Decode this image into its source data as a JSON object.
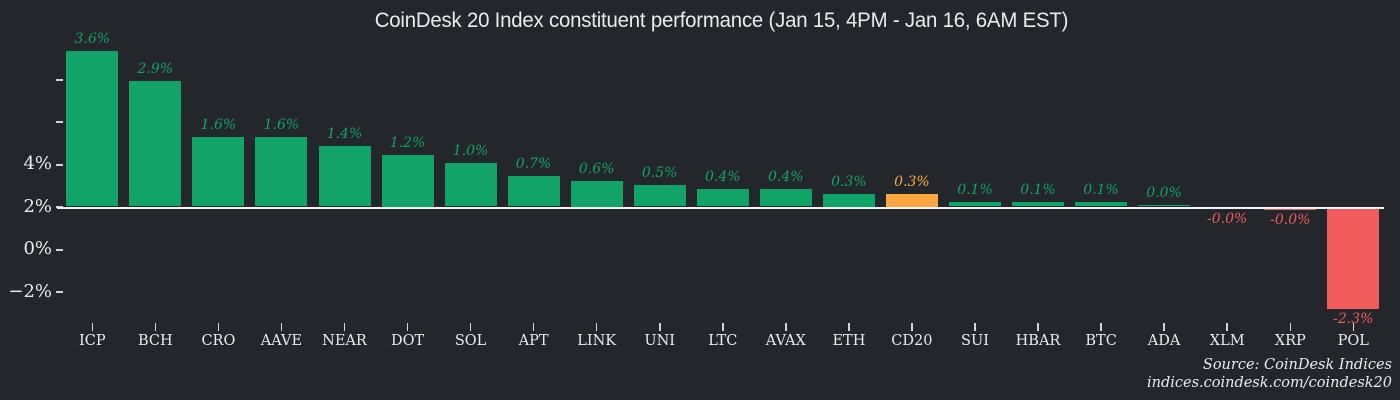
{
  "page": {
    "background": "#23262a"
  },
  "colors": {
    "green": "#12a366",
    "orange": "#f8a843",
    "red": "#f15b5b",
    "axis_line": "#eef0f1",
    "tick": "#d3d6d8",
    "text": "#e9ebec"
  },
  "chart_data": {
    "type": "bar",
    "title": "CoinDesk 20 Index constituent performance (Jan 15, 4PM - Jan 16, 6AM EST)",
    "categories": [
      "ICP",
      "BCH",
      "CRO",
      "AAVE",
      "NEAR",
      "DOT",
      "SOL",
      "APT",
      "LINK",
      "UNI",
      "LTC",
      "AVAX",
      "ETH",
      "CD20",
      "SUI",
      "HBAR",
      "BTC",
      "ADA",
      "XLM",
      "XRP",
      "POL"
    ],
    "values": [
      3.6,
      2.9,
      1.6,
      1.6,
      1.4,
      1.2,
      1.0,
      0.7,
      0.6,
      0.5,
      0.4,
      0.4,
      0.3,
      0.3,
      0.1,
      0.1,
      0.1,
      0.04,
      -0.005,
      -0.03,
      -2.3
    ],
    "labels": [
      "3.6%",
      "2.9%",
      "1.6%",
      "1.6%",
      "1.4%",
      "1.2%",
      "1.0%",
      "0.7%",
      "0.6%",
      "0.5%",
      "0.4%",
      "0.4%",
      "0.3%",
      "0.3%",
      "0.1%",
      "0.1%",
      "0.1%",
      "0.0%",
      "-0.0%",
      "-0.0%",
      "-2.3%"
    ],
    "bar_colors": [
      "green",
      "green",
      "green",
      "green",
      "green",
      "green",
      "green",
      "green",
      "green",
      "green",
      "green",
      "green",
      "green",
      "orange",
      "green",
      "green",
      "green",
      "green",
      "red",
      "red",
      "red"
    ],
    "y_axis": {
      "tick_labels": [
        "",
        "",
        "4%",
        "2%",
        "0%",
        "−2%"
      ]
    },
    "xlabel": "",
    "ylabel": "",
    "grid": "off",
    "legend": "none"
  },
  "footer": {
    "source": "Source: CoinDesk Indices",
    "url": "indices.coindesk.com/coindesk20"
  }
}
